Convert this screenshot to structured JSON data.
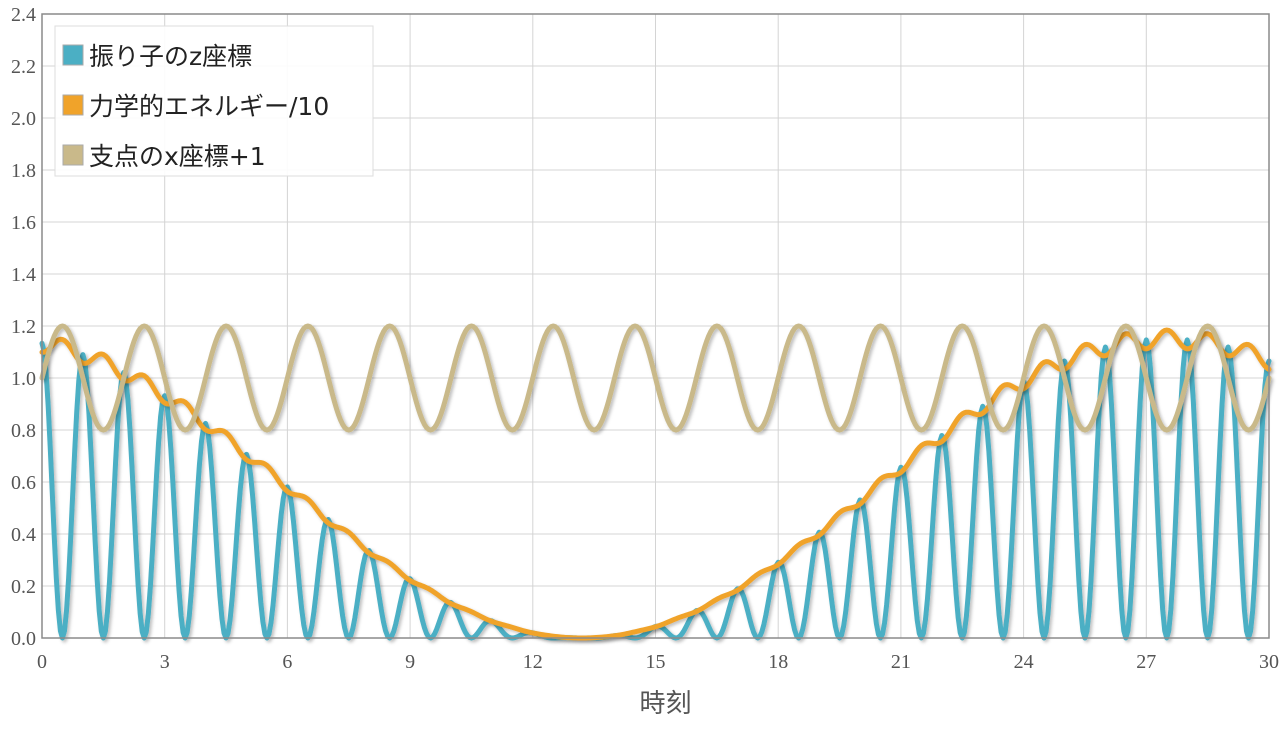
{
  "chart_data": {
    "type": "line",
    "title": "",
    "xlabel": "時刻",
    "ylabel": "",
    "xlim": [
      0,
      30
    ],
    "ylim": [
      0,
      2.4
    ],
    "x_ticks": [
      0,
      3,
      6,
      9,
      12,
      15,
      18,
      21,
      24,
      27,
      30
    ],
    "y_ticks": [
      "0.0",
      "0.2",
      "0.4",
      "0.6",
      "0.8",
      "1.0",
      "1.2",
      "1.4",
      "1.6",
      "1.8",
      "2.0",
      "2.2",
      "2.4"
    ],
    "grid": true,
    "legend_position": "top-left",
    "sample_step": 0.05,
    "series": [
      {
        "name": "振り子のz座標",
        "color": "#4bafc4",
        "model": {
          "kind": "rectified-beat",
          "envelope_peak": 1.15,
          "envelope_period": 28.6,
          "envelope_zero": 13.2,
          "carrier_period": 2.0,
          "carrier_phase": 0.5
        }
      },
      {
        "name": "力学的エネルギー/10",
        "color": "#f0a32a",
        "model": {
          "kind": "stepped-envelope",
          "envelope_peak": 1.15,
          "envelope_period": 28.6,
          "envelope_zero": 13.2,
          "step_period": 1.0,
          "step_amount": 0.1
        }
      },
      {
        "name": "支点のx座標+1",
        "color": "#c9b98a",
        "model": {
          "kind": "sine",
          "offset": 1.0,
          "amplitude": 0.2,
          "period": 2.0,
          "phase": 0.0
        }
      }
    ]
  }
}
